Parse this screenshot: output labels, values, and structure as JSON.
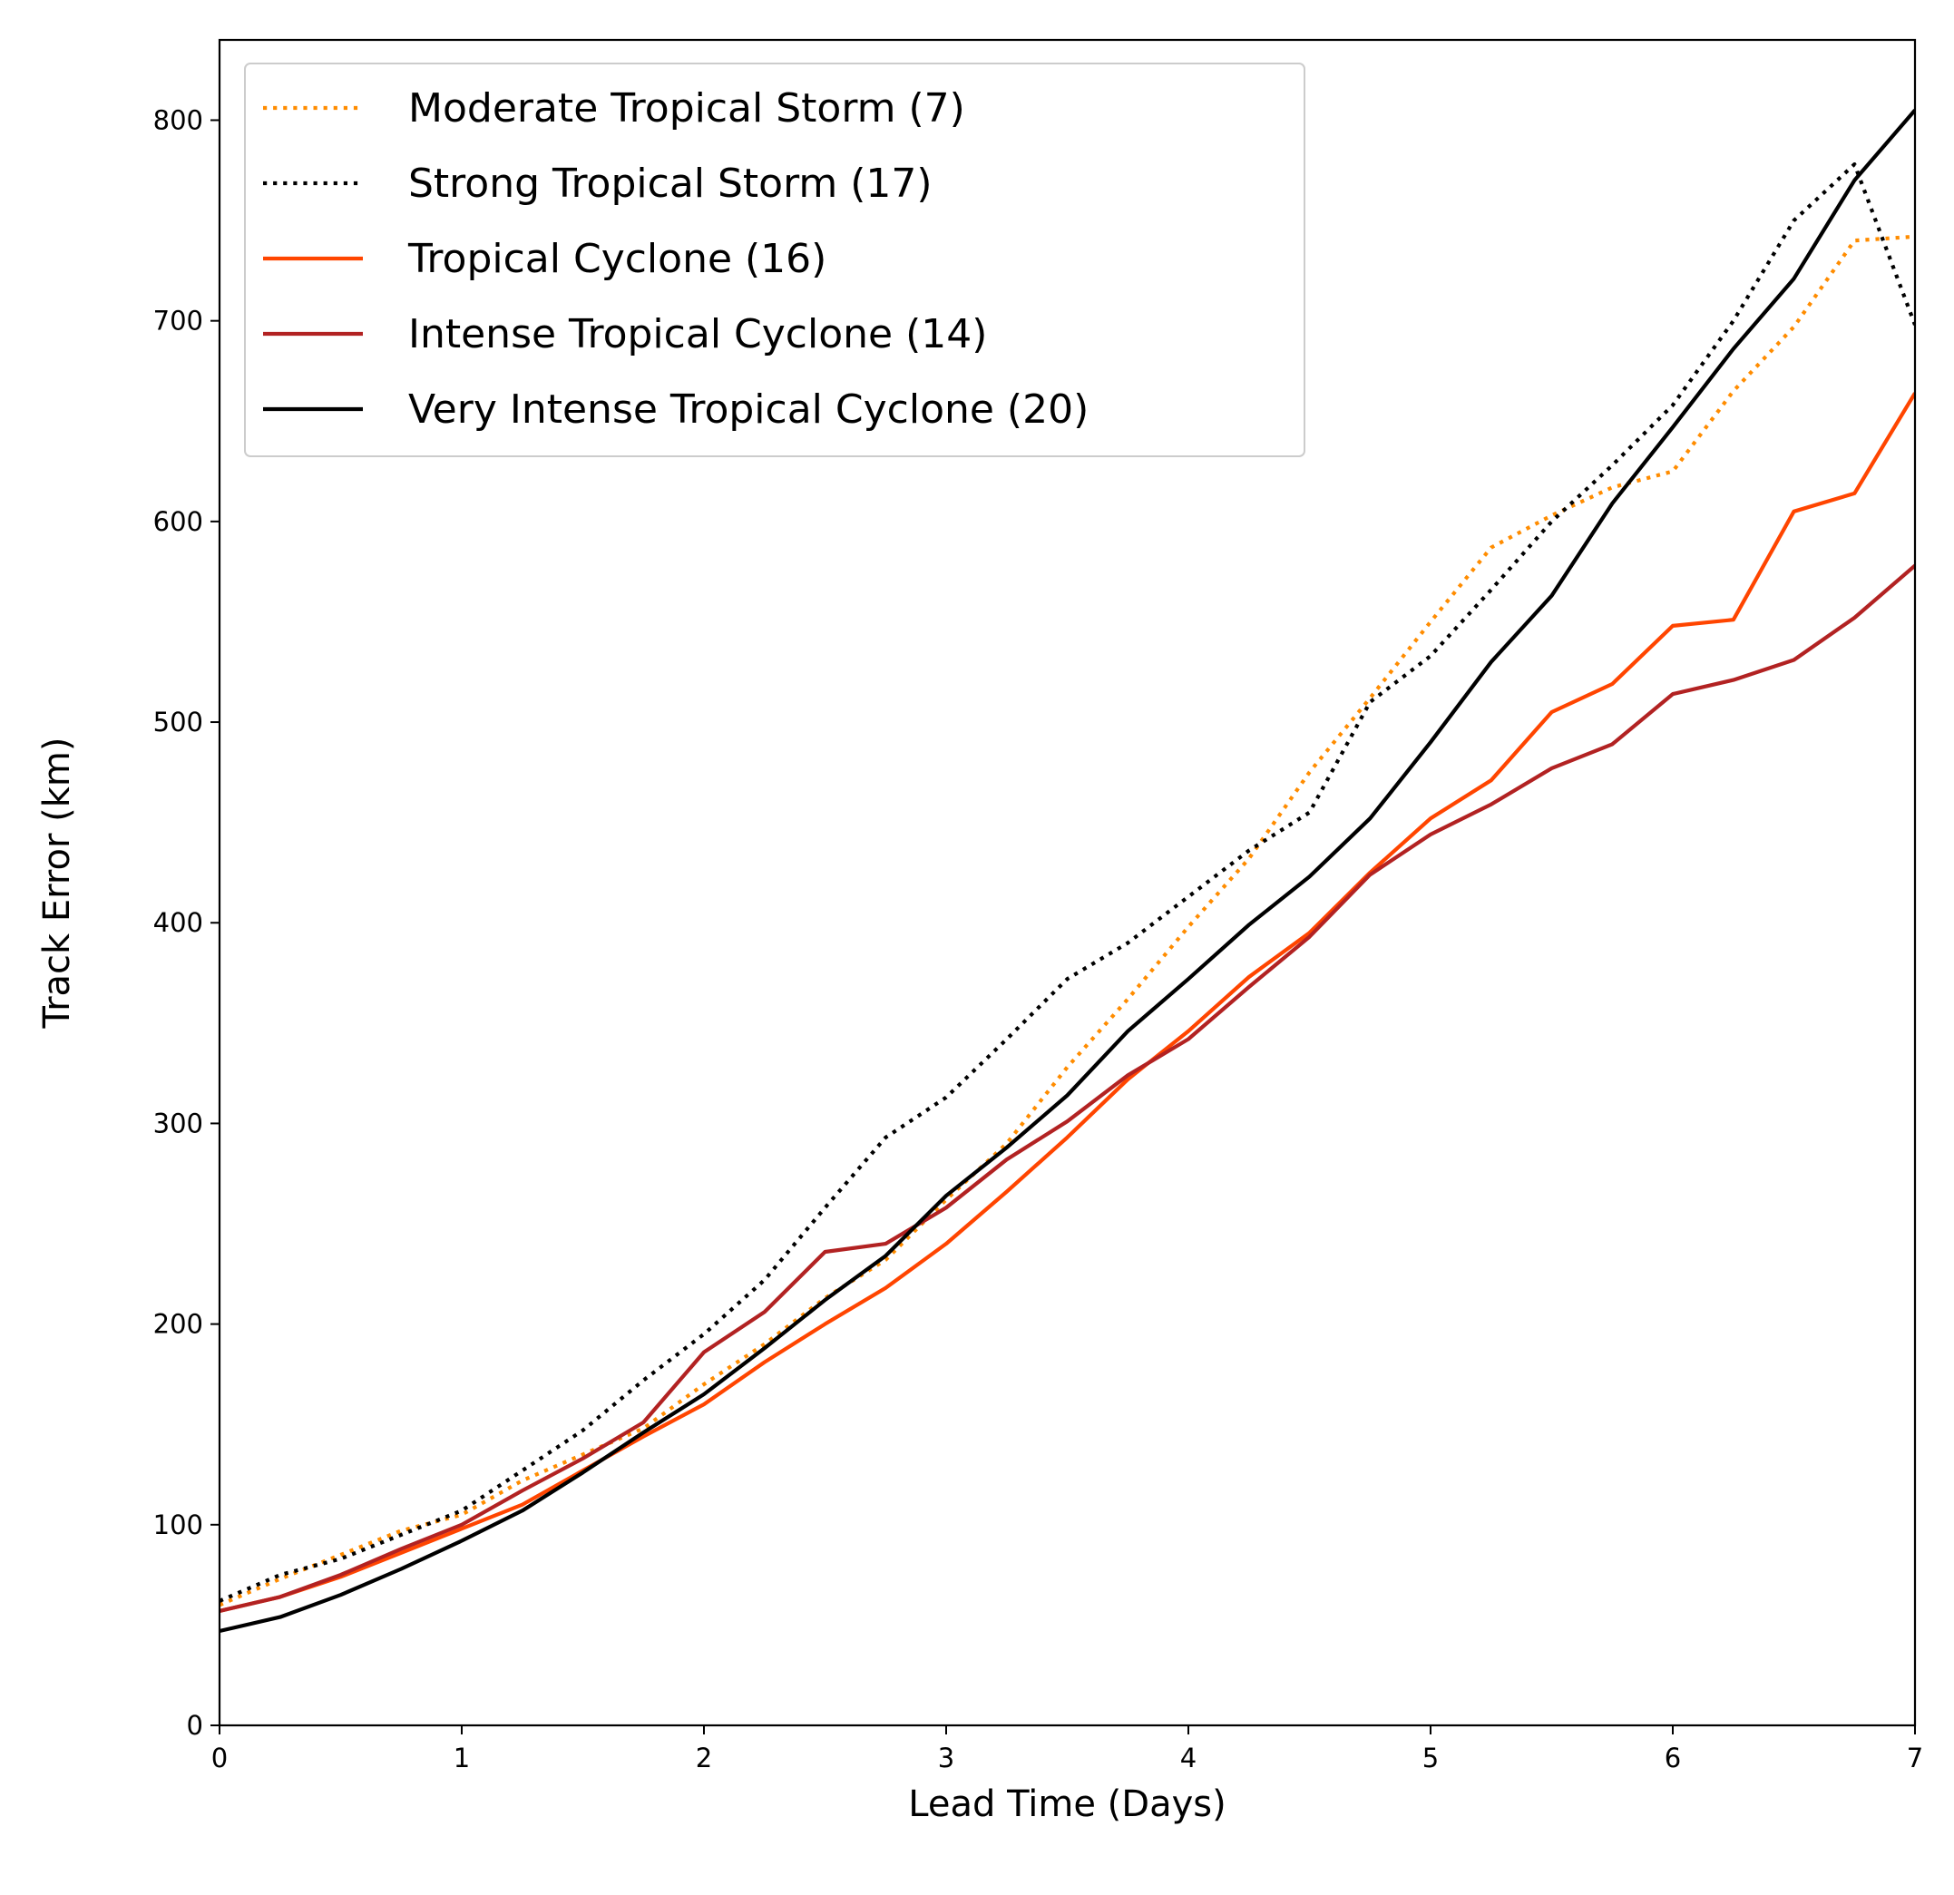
{
  "chart_data": {
    "type": "line",
    "xlabel": "Lead Time (Days)",
    "ylabel": "Track Error (km)",
    "xlim": [
      0,
      7
    ],
    "ylim": [
      0,
      840
    ],
    "xticks": [
      0,
      1,
      2,
      3,
      4,
      5,
      6,
      7
    ],
    "yticks": [
      0,
      100,
      200,
      300,
      400,
      500,
      600,
      700,
      800
    ],
    "grid": false,
    "legend_position": "upper-left",
    "x": [
      0,
      0.25,
      0.5,
      0.75,
      1,
      1.25,
      1.5,
      1.75,
      2,
      2.25,
      2.5,
      2.75,
      3,
      3.25,
      3.5,
      3.75,
      4,
      4.25,
      4.5,
      4.75,
      5,
      5.25,
      5.5,
      5.75,
      6,
      6.25,
      6.5,
      6.75,
      7
    ],
    "series": [
      {
        "name": "Moderate Tropical Storm (7)",
        "color": "#ff8c00",
        "style": "dotted",
        "values": [
          60,
          73,
          85,
          97,
          105,
          122,
          135,
          148,
          170,
          190,
          213,
          232,
          262,
          290,
          328,
          362,
          398,
          432,
          475,
          512,
          550,
          587,
          603,
          617,
          625,
          665,
          697,
          740,
          742
        ]
      },
      {
        "name": "Strong Tropical Storm (17)",
        "color": "#000000",
        "style": "dotted",
        "values": [
          62,
          75,
          83,
          95,
          107,
          127,
          147,
          172,
          195,
          222,
          258,
          293,
          313,
          342,
          372,
          390,
          413,
          436,
          455,
          510,
          533,
          566,
          600,
          628,
          658,
          700,
          750,
          778,
          698
        ]
      },
      {
        "name": "Tropical Cyclone (16)",
        "color": "#ff4500",
        "style": "solid",
        "values": [
          57,
          64,
          74,
          86,
          98,
          110,
          127,
          144,
          160,
          181,
          200,
          218,
          240,
          266,
          293,
          322,
          346,
          373,
          395,
          425,
          452,
          471,
          505,
          519,
          548,
          551,
          605,
          614,
          664
        ]
      },
      {
        "name": "Intense Tropical Cyclone (14)",
        "color": "#b22222",
        "style": "solid",
        "values": [
          57,
          64,
          75,
          88,
          100,
          117,
          133,
          151,
          186,
          206,
          236,
          240,
          258,
          282,
          301,
          324,
          342,
          368,
          393,
          424,
          444,
          459,
          477,
          489,
          514,
          521,
          531,
          552,
          578
        ]
      },
      {
        "name": "Very Intense Tropical Cyclone (20)",
        "color": "#000000",
        "style": "solid",
        "values": [
          47,
          54,
          65,
          78,
          92,
          107,
          126,
          146,
          165,
          188,
          212,
          234,
          264,
          288,
          314,
          346,
          372,
          399,
          423,
          452,
          490,
          530,
          563,
          609,
          647,
          686,
          721,
          770,
          805
        ]
      }
    ]
  }
}
